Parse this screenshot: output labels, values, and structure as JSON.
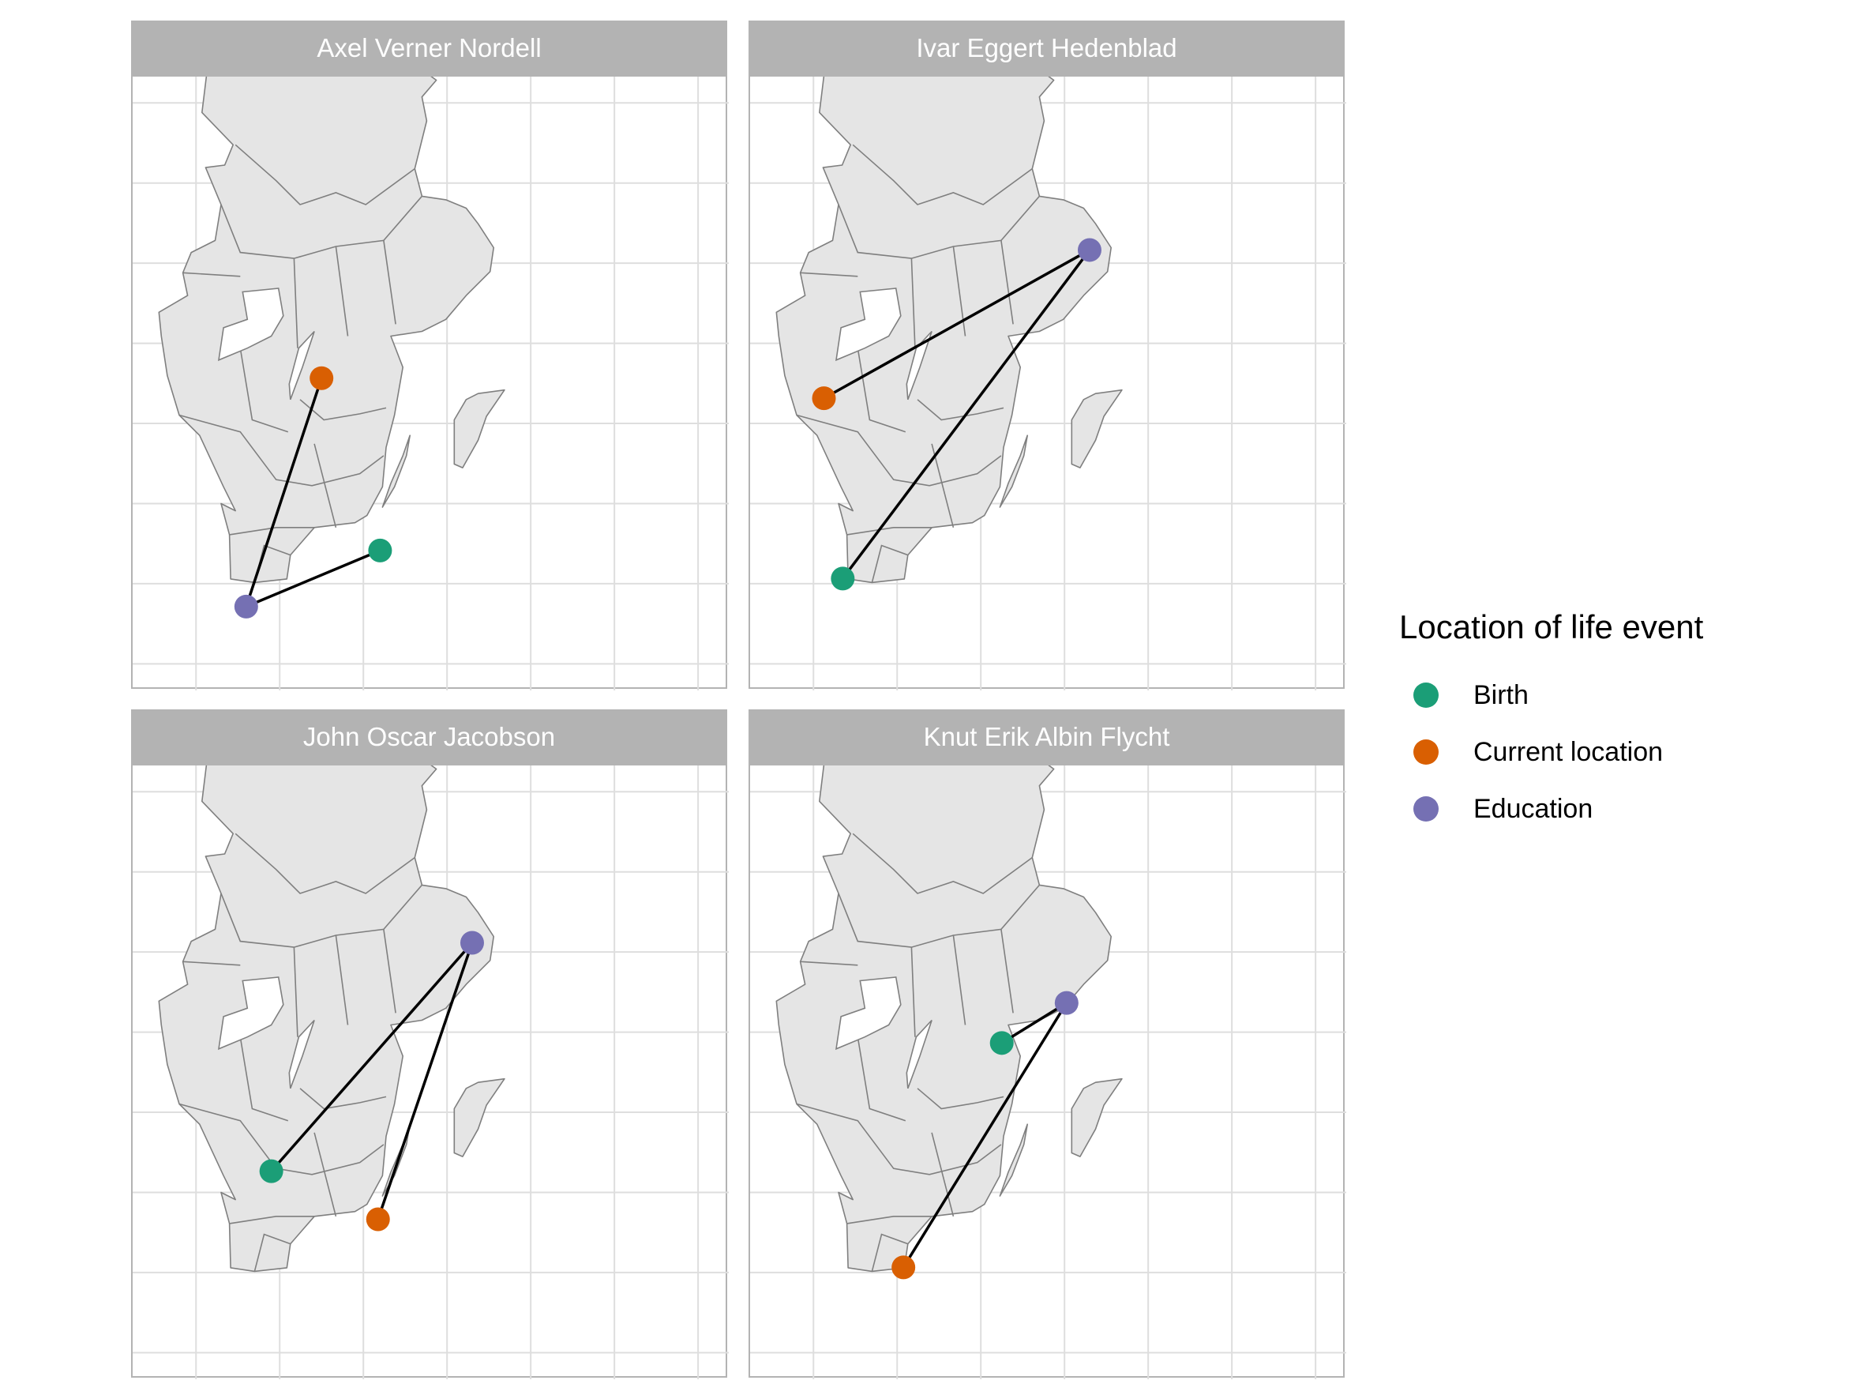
{
  "chart_data": {
    "type": "map",
    "legend": {
      "title": "Location of life event",
      "position": "right",
      "entries": [
        {
          "label": "Birth",
          "color": "#1B9E77"
        },
        {
          "label": "Current location",
          "color": "#D95F02"
        },
        {
          "label": "Education",
          "color": "#7570B3"
        }
      ]
    },
    "grid": true,
    "land_color": "#e5e5e5",
    "border_color": "#7f7f7f",
    "line_color": "#000000",
    "facets": [
      {
        "title": "Axel Verner Nordell",
        "points": [
          {
            "event": "Birth",
            "lon": 16.4,
            "lat": 56.4
          },
          {
            "event": "Current location",
            "lon": 15.0,
            "lat": 58.55
          },
          {
            "event": "Education",
            "lon": 13.2,
            "lat": 55.7
          }
        ]
      },
      {
        "title": "Ivar Eggert Hedenblad",
        "points": [
          {
            "event": "Birth",
            "lon": 12.7,
            "lat": 56.05
          },
          {
            "event": "Current location",
            "lon": 12.25,
            "lat": 58.3
          },
          {
            "event": "Education",
            "lon": 18.6,
            "lat": 60.15
          }
        ]
      },
      {
        "title": "John Oscar Jacobson",
        "points": [
          {
            "event": "Birth",
            "lon": 13.8,
            "lat": 57.25
          },
          {
            "event": "Current location",
            "lon": 16.35,
            "lat": 56.65
          },
          {
            "event": "Education",
            "lon": 18.6,
            "lat": 60.1
          }
        ]
      },
      {
        "title": "Knut Erik Albin Flycht",
        "points": [
          {
            "event": "Birth",
            "lon": 16.5,
            "lat": 58.85
          },
          {
            "event": "Current location",
            "lon": 14.15,
            "lat": 56.05
          },
          {
            "event": "Education",
            "lon": 18.05,
            "lat": 59.35
          }
        ]
      }
    ]
  }
}
